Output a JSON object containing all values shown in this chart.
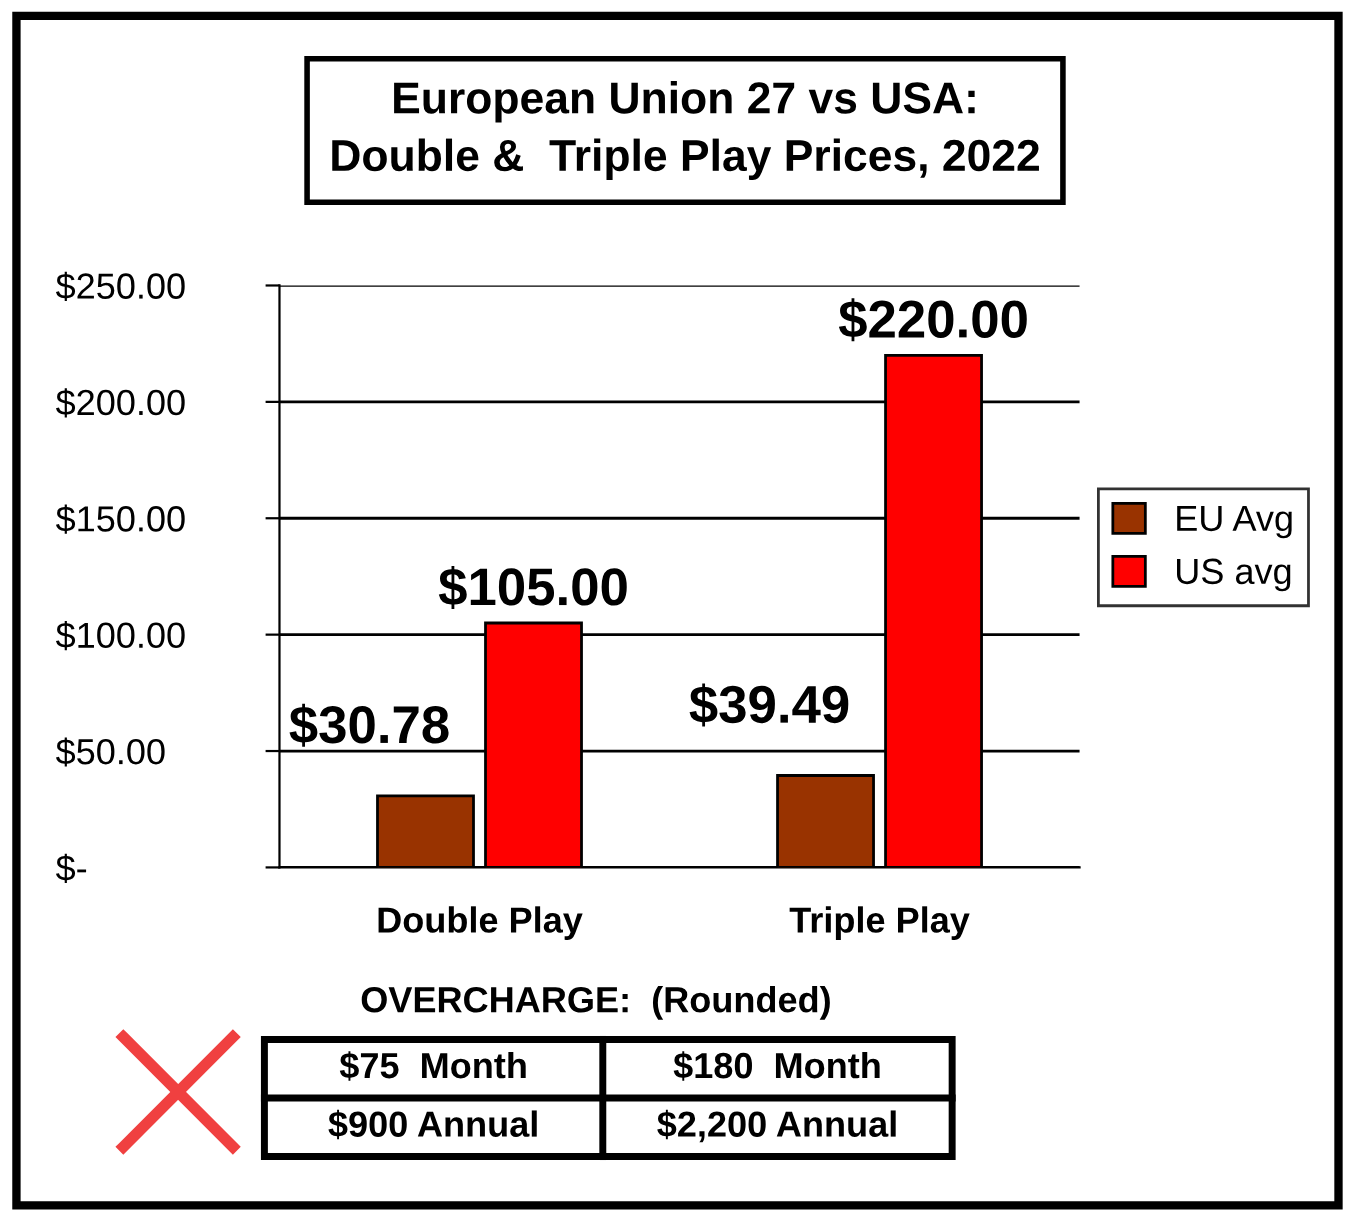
{
  "chart_data": {
    "type": "bar",
    "title": "European Union 27 vs USA:\nDouble &  Triple Play Prices, 2022",
    "categories": [
      "Double Play",
      "Triple Play"
    ],
    "series": [
      {
        "name": "EU Avg",
        "color": "#993300",
        "values": [
          30.78,
          39.49
        ],
        "value_labels": [
          "$30.78",
          "$39.49"
        ]
      },
      {
        "name": "US avg",
        "color": "#ff0000",
        "values": [
          105.0,
          220.0
        ],
        "value_labels": [
          "$105.00",
          "$220.00"
        ]
      }
    ],
    "ylim": [
      0,
      250
    ],
    "yticks": [
      {
        "value": 0,
        "label": "$-"
      },
      {
        "value": 50,
        "label": "$50.00"
      },
      {
        "value": 100,
        "label": "$100.00"
      },
      {
        "value": 150,
        "label": "$150.00"
      },
      {
        "value": 200,
        "label": "$200.00"
      },
      {
        "value": 250,
        "label": "$250.00"
      }
    ],
    "grid": "y",
    "legend": "right",
    "annotations": [
      "OVERCHARGE:  (Rounded)",
      "$75  Month",
      "$180  Month",
      "$900 Annual",
      "$2,200 Annual"
    ]
  }
}
